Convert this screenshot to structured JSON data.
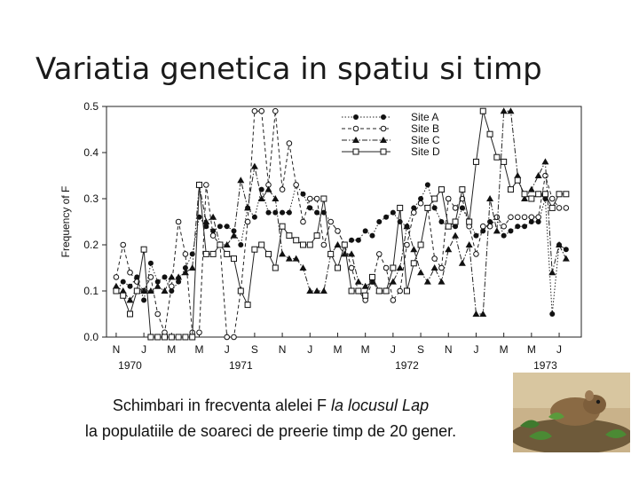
{
  "slide": {
    "title": "Variatia genetica in spatiu si timp",
    "caption_line1_plain": "Schimbari in frecventa alelei F ",
    "caption_line1_italic": "la locusul Lap",
    "caption_line2": "la populatiile de soareci de preerie timp de 20 gener."
  },
  "chart_data": {
    "type": "line",
    "title": "",
    "xlabel": "",
    "ylabel": "Frequency of F",
    "ylim": [
      0,
      0.5
    ],
    "yticks": [
      "0.0",
      "0.1",
      "0.2",
      "0.3",
      "0.4",
      "0.5"
    ],
    "month_labels": [
      "N",
      "J",
      "M",
      "M",
      "J",
      "S",
      "N",
      "J",
      "M",
      "M",
      "J",
      "S",
      "N",
      "J",
      "M",
      "M",
      "J"
    ],
    "year_labels": [
      "1970",
      "1971",
      "1972",
      "1973"
    ],
    "grid": false,
    "legend_position": "top-right",
    "series": [
      {
        "name": "Site A",
        "marker": "filled-circle",
        "line": "dotted",
        "x": [
          0,
          0.5,
          1,
          1.5,
          2,
          2.5,
          3,
          3.5,
          4,
          4.5,
          5,
          5.5,
          6,
          6.5,
          7,
          7.5,
          8,
          8.5,
          9,
          9.5,
          10,
          10.5,
          11,
          11.5,
          12,
          12.5,
          13,
          13.5,
          14,
          14.5,
          15,
          15.5,
          16,
          16.5,
          17,
          17.5,
          18,
          18.5,
          19,
          19.5,
          20,
          20.5,
          21,
          21.5,
          22,
          22.5,
          23,
          23.5,
          24,
          24.5,
          25,
          25.5,
          26,
          26.5,
          27,
          27.5,
          28,
          28.5,
          29,
          29.5,
          30,
          30.5,
          31,
          31.5,
          32,
          32.5
        ],
        "y": [
          0.1,
          0.12,
          0.11,
          0.13,
          0.08,
          0.16,
          0.12,
          0.13,
          0.1,
          0.12,
          0.15,
          0.18,
          0.26,
          0.24,
          0.23,
          0.24,
          0.24,
          0.23,
          0.2,
          0.28,
          0.26,
          0.32,
          0.27,
          0.27,
          0.27,
          0.27,
          0.33,
          0.31,
          0.28,
          0.27,
          0.27,
          0.25,
          0.23,
          0.2,
          0.21,
          0.21,
          0.23,
          0.22,
          0.25,
          0.26,
          0.27,
          0.25,
          0.24,
          0.28,
          0.3,
          0.33,
          0.28,
          0.25,
          0.24,
          0.24,
          0.28,
          0.25,
          0.22,
          0.23,
          0.25,
          0.26,
          0.22,
          0.23,
          0.24,
          0.24,
          0.25,
          0.25,
          0.3,
          0.05,
          0.2,
          0.19
        ]
      },
      {
        "name": "Site B",
        "marker": "open-circle",
        "line": "dashed",
        "x": [
          0,
          0.5,
          1,
          1.5,
          2,
          2.5,
          3,
          3.5,
          4,
          4.5,
          5,
          5.5,
          6,
          6.5,
          7,
          7.5,
          8,
          8.5,
          9,
          9.5,
          10,
          10.5,
          11,
          11.5,
          12,
          12.5,
          13,
          13.5,
          14,
          14.5,
          15,
          15.5,
          16,
          16.5,
          17,
          17.5,
          18,
          18.5,
          19,
          19.5,
          20,
          20.5,
          21,
          21.5,
          22,
          22.5,
          23,
          23.5,
          24,
          24.5,
          25,
          25.5,
          26,
          26.5,
          27,
          27.5,
          28,
          28.5,
          29,
          29.5,
          30,
          30.5,
          31,
          31.5,
          32,
          32.5
        ],
        "y": [
          0.13,
          0.2,
          0.14,
          0.12,
          0.1,
          0.13,
          0.05,
          0.01,
          0.11,
          0.25,
          0.18,
          0.01,
          0.01,
          0.33,
          0.22,
          0.2,
          0.0,
          0.0,
          0.1,
          0.25,
          0.49,
          0.49,
          0.33,
          0.49,
          0.32,
          0.42,
          0.33,
          0.25,
          0.3,
          0.3,
          0.2,
          0.25,
          0.23,
          0.2,
          0.15,
          0.1,
          0.08,
          0.12,
          0.18,
          0.15,
          0.08,
          0.1,
          0.2,
          0.27,
          0.29,
          0.28,
          0.17,
          0.15,
          0.3,
          0.28,
          0.3,
          0.24,
          0.18,
          0.24,
          0.24,
          0.26,
          0.24,
          0.26,
          0.26,
          0.26,
          0.26,
          0.26,
          0.35,
          0.3,
          0.28,
          0.28
        ]
      },
      {
        "name": "Site C",
        "marker": "filled-triangle",
        "line": "dash-dot",
        "x": [
          0,
          0.5,
          1,
          1.5,
          2,
          2.5,
          3,
          3.5,
          4,
          4.5,
          5,
          5.5,
          6,
          6.5,
          7,
          7.5,
          8,
          8.5,
          9,
          9.5,
          10,
          10.5,
          11,
          11.5,
          12,
          12.5,
          13,
          13.5,
          14,
          14.5,
          15,
          15.5,
          16,
          16.5,
          17,
          17.5,
          18,
          18.5,
          19,
          19.5,
          20,
          20.5,
          21,
          21.5,
          22,
          22.5,
          23,
          23.5,
          24,
          24.5,
          25,
          25.5,
          26,
          26.5,
          27,
          27.5,
          28,
          28.5,
          29,
          29.5,
          30,
          30.5,
          31,
          31.5,
          32,
          32.5
        ],
        "y": [
          0.11,
          0.1,
          0.08,
          0.1,
          0.1,
          0.1,
          0.11,
          0.1,
          0.13,
          0.13,
          0.14,
          0.15,
          0.33,
          0.25,
          0.26,
          0.2,
          0.2,
          0.22,
          0.34,
          0.28,
          0.37,
          0.3,
          0.32,
          0.3,
          0.18,
          0.17,
          0.17,
          0.15,
          0.1,
          0.1,
          0.1,
          0.18,
          0.2,
          0.18,
          0.18,
          0.12,
          0.11,
          0.12,
          0.1,
          0.1,
          0.12,
          0.15,
          0.24,
          0.19,
          0.14,
          0.12,
          0.15,
          0.12,
          0.19,
          0.22,
          0.16,
          0.2,
          0.05,
          0.05,
          0.3,
          0.23,
          0.49,
          0.49,
          0.35,
          0.3,
          0.32,
          0.35,
          0.38,
          0.14,
          0.2,
          0.17
        ]
      },
      {
        "name": "Site D",
        "marker": "open-square",
        "line": "solid",
        "x": [
          0,
          0.5,
          1,
          1.5,
          2,
          2.5,
          3,
          3.5,
          4,
          4.5,
          5,
          5.5,
          6,
          6.5,
          7,
          7.5,
          8,
          8.5,
          9,
          9.5,
          10,
          10.5,
          11,
          11.5,
          12,
          12.5,
          13,
          13.5,
          14,
          14.5,
          15,
          15.5,
          16,
          16.5,
          17,
          17.5,
          18,
          18.5,
          19,
          19.5,
          20,
          20.5,
          21,
          21.5,
          22,
          22.5,
          23,
          23.5,
          24,
          24.5,
          25,
          25.5,
          26,
          26.5,
          27,
          27.5,
          28,
          28.5,
          29,
          29.5,
          30,
          30.5,
          31,
          31.5,
          32,
          32.5
        ],
        "y": [
          0.1,
          0.09,
          0.05,
          0.1,
          0.19,
          0.0,
          0.0,
          0.0,
          0.0,
          0.0,
          0.0,
          0.0,
          0.33,
          0.18,
          0.18,
          0.2,
          0.18,
          0.17,
          0.1,
          0.07,
          0.19,
          0.2,
          0.18,
          0.15,
          0.24,
          0.22,
          0.21,
          0.2,
          0.2,
          0.22,
          0.3,
          0.18,
          0.15,
          0.2,
          0.1,
          0.1,
          0.09,
          0.13,
          0.1,
          0.1,
          0.15,
          0.28,
          0.1,
          0.16,
          0.2,
          0.28,
          0.3,
          0.32,
          0.24,
          0.25,
          0.32,
          0.25,
          0.38,
          0.49,
          0.44,
          0.39,
          0.38,
          0.32,
          0.34,
          0.31,
          0.3,
          0.31,
          0.31,
          0.28,
          0.31,
          0.31
        ]
      }
    ]
  }
}
